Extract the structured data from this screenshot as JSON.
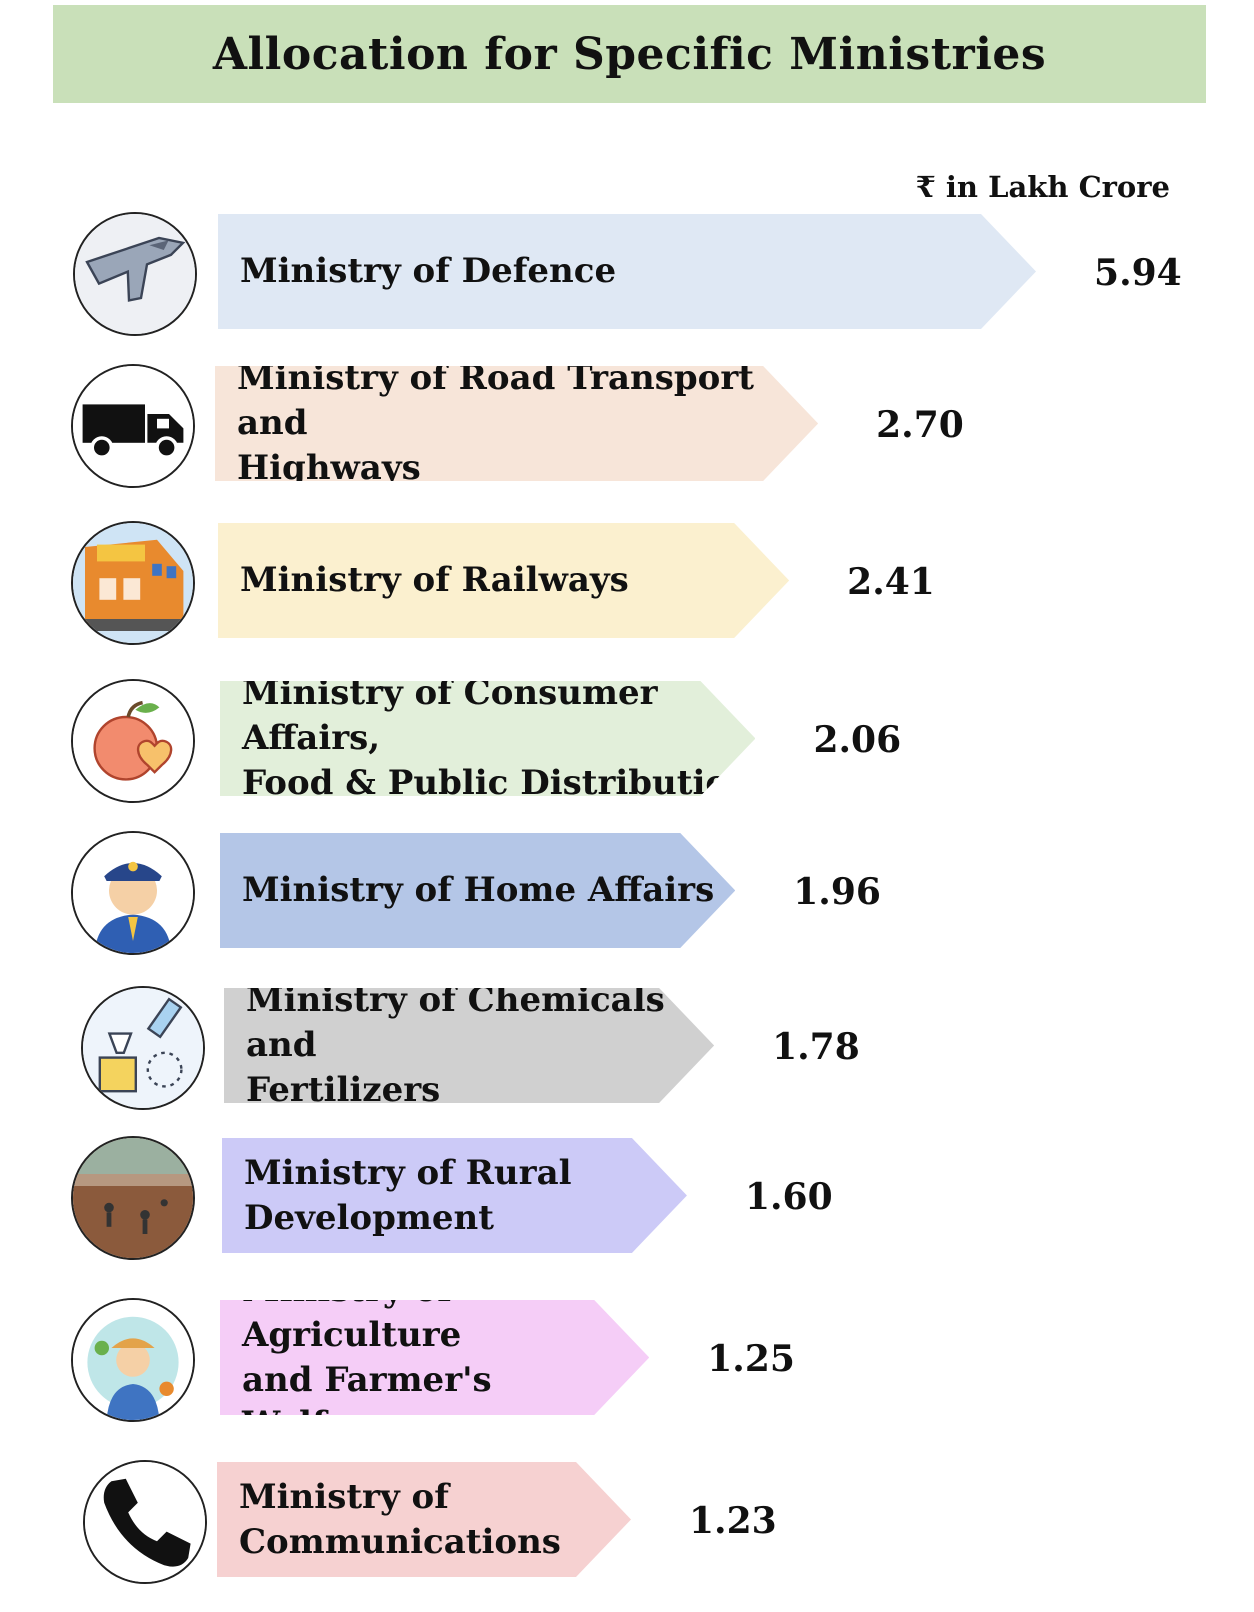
{
  "title": "Allocation for Specific Ministries",
  "unit_label": "₹ in Lakh Crore",
  "chart_data": {
    "type": "bar",
    "title": "Allocation for Specific Ministries",
    "ylabel": "₹ in Lakh Crore",
    "categories": [
      "Ministry of Defence",
      "Ministry of Road Transport and Highways",
      "Ministry of Railways",
      "Ministry of Consumer Affairs, Food & Public Distribution",
      "Ministry of Home Affairs",
      "Ministry of Chemicals and Fertilizers",
      "Ministry of Rural Development",
      "Ministry of Agriculture and Farmer's Welfare",
      "Ministry of Communications"
    ],
    "values": [
      5.94,
      2.7,
      2.41,
      2.06,
      1.96,
      1.78,
      1.6,
      1.25,
      1.23
    ],
    "value_labels": [
      "5.94",
      "2.70",
      "2.41",
      "2.06",
      "1.96",
      "1.78",
      "1.60",
      "1.25",
      "1.23"
    ]
  },
  "rows": [
    {
      "label": "Ministry of Defence",
      "color": "#dfe8f4",
      "icon": "fighter-jet-icon"
    },
    {
      "label": "Ministry of Road Transport and\nHighways",
      "color": "#f7e5d9",
      "icon": "truck-icon"
    },
    {
      "label": "Ministry of Railways",
      "color": "#fbf0cf",
      "icon": "train-icon"
    },
    {
      "label": "Ministry of Consumer Affairs,\nFood & Public Distribution",
      "color": "#e2efda",
      "icon": "apple-heart-icon"
    },
    {
      "label": "Ministry of Home Affairs",
      "color": "#b4c6e7",
      "icon": "police-officer-icon"
    },
    {
      "label": "Ministry of Chemicals and\nFertilizers",
      "color": "#d0d0d0",
      "icon": "chemical-flask-icon"
    },
    {
      "label": "Ministry of Rural\nDevelopment",
      "color": "#cccaf7",
      "icon": "rural-workers-icon"
    },
    {
      "label": "Ministry of Agriculture\nand Farmer's Welfare",
      "color": "#f5cdf7",
      "icon": "farmer-icon"
    },
    {
      "label": "Ministry of\nCommunications",
      "color": "#f6d1d1",
      "icon": "telephone-icon"
    }
  ]
}
